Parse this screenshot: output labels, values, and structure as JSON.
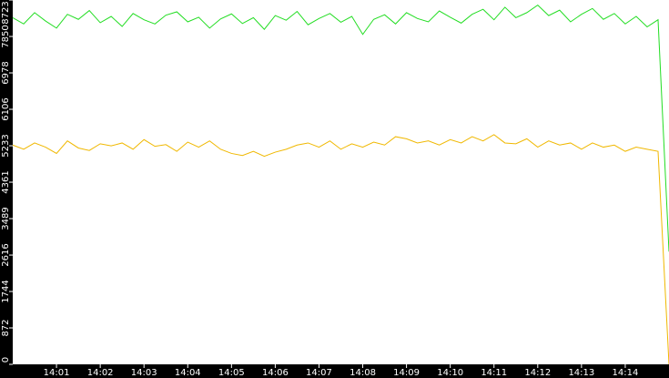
{
  "chart_data": {
    "type": "line",
    "x": [
      0,
      0.25,
      0.5,
      0.75,
      1,
      1.25,
      1.5,
      1.75,
      2,
      2.25,
      2.5,
      2.75,
      3,
      3.25,
      3.5,
      3.75,
      4,
      4.25,
      4.5,
      4.75,
      5,
      5.25,
      5.5,
      5.75,
      6,
      6.25,
      6.5,
      6.75,
      7,
      7.25,
      7.5,
      7.75,
      8,
      8.25,
      8.5,
      8.75,
      9,
      9.25,
      9.5,
      9.75,
      10,
      10.25,
      10.5,
      10.75,
      11,
      11.25,
      11.5,
      11.75,
      12,
      12.25,
      12.5,
      12.75,
      13,
      13.25,
      13.5,
      13.75,
      14,
      14.25,
      14.5,
      14.75,
      15
    ],
    "series": [
      {
        "color": "#22dd22",
        "values": [
          8300,
          8150,
          8420,
          8220,
          8050,
          8380,
          8260,
          8470,
          8180,
          8330,
          8090,
          8400,
          8250,
          8150,
          8360,
          8440,
          8200,
          8310,
          8050,
          8270,
          8390,
          8160,
          8300,
          8020,
          8350,
          8240,
          8450,
          8130,
          8280,
          8400,
          8190,
          8330,
          7900,
          8260,
          8370,
          8150,
          8420,
          8280,
          8200,
          8460,
          8310,
          8170,
          8380,
          8500,
          8250,
          8550,
          8300,
          8420,
          8600,
          8350,
          8480,
          8200,
          8380,
          8520,
          8260,
          8400,
          8150,
          8330,
          8080,
          8250,
          2700
        ]
      },
      {
        "color": "#f0b800",
        "values": [
          5250,
          5150,
          5300,
          5200,
          5050,
          5350,
          5180,
          5120,
          5280,
          5230,
          5300,
          5150,
          5380,
          5220,
          5260,
          5100,
          5320,
          5200,
          5350,
          5150,
          5050,
          5000,
          5100,
          4980,
          5080,
          5150,
          5250,
          5300,
          5200,
          5350,
          5150,
          5280,
          5200,
          5320,
          5250,
          5450,
          5400,
          5300,
          5350,
          5250,
          5380,
          5300,
          5450,
          5350,
          5500,
          5300,
          5280,
          5400,
          5200,
          5350,
          5250,
          5300,
          5150,
          5300,
          5200,
          5250,
          5100,
          5200,
          5150,
          5100,
          0
        ]
      }
    ],
    "xlim": [
      0,
      15
    ],
    "xticks": [
      {
        "value": 1,
        "label": "14:01"
      },
      {
        "value": 2,
        "label": "14:02"
      },
      {
        "value": 3,
        "label": "14:03"
      },
      {
        "value": 4,
        "label": "14:04"
      },
      {
        "value": 5,
        "label": "14:05"
      },
      {
        "value": 6,
        "label": "14:06"
      },
      {
        "value": 7,
        "label": "14:07"
      },
      {
        "value": 8,
        "label": "14:08"
      },
      {
        "value": 9,
        "label": "14:09"
      },
      {
        "value": 10,
        "label": "14:10"
      },
      {
        "value": 11,
        "label": "14:11"
      },
      {
        "value": 12,
        "label": "14:12"
      },
      {
        "value": 13,
        "label": "14:13"
      },
      {
        "value": 14,
        "label": "14:14"
      }
    ],
    "ylim": [
      0,
      8723
    ],
    "yticks": [
      0,
      872,
      1744,
      2616,
      3489,
      4361,
      5233,
      6106,
      6978,
      7850,
      8723
    ]
  }
}
